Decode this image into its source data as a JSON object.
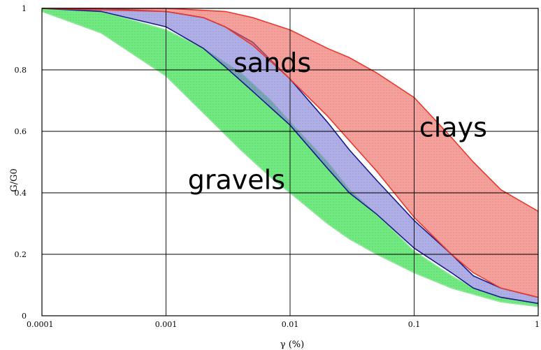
{
  "chart_data": {
    "type": "area",
    "title": "",
    "xlabel": "γ (%)",
    "ylabel": "G/G0",
    "xscale": "log",
    "xlim": [
      0.0001,
      1
    ],
    "ylim": [
      0,
      1
    ],
    "grid": true,
    "xticks": [
      0.0001,
      0.001,
      0.01,
      0.1,
      1
    ],
    "xtick_labels": [
      "0.0001",
      "0.001",
      "0.01",
      "0.1",
      "1"
    ],
    "yticks": [
      0,
      0.2,
      0.4,
      0.6,
      0.8,
      1
    ],
    "ytick_labels": [
      "0",
      "0.2",
      "0.4",
      "0.6",
      "0.8",
      "1"
    ],
    "bands": [
      {
        "name": "gravels",
        "fill": "#33e04a",
        "edge": "#8ee89a",
        "opacity": 0.7,
        "upper": [
          [
            0.0001,
            1.0
          ],
          [
            0.0003,
            0.99
          ],
          [
            0.001,
            0.93
          ],
          [
            0.002,
            0.87
          ],
          [
            0.004,
            0.79
          ],
          [
            0.007,
            0.7
          ],
          [
            0.01,
            0.63
          ],
          [
            0.02,
            0.5
          ],
          [
            0.03,
            0.41
          ],
          [
            0.05,
            0.33
          ],
          [
            0.1,
            0.21
          ],
          [
            0.2,
            0.13
          ],
          [
            0.3,
            0.09
          ],
          [
            0.5,
            0.06
          ],
          [
            1.0,
            0.04
          ]
        ],
        "lower": [
          [
            0.0001,
            0.99
          ],
          [
            0.0003,
            0.92
          ],
          [
            0.001,
            0.78
          ],
          [
            0.002,
            0.66
          ],
          [
            0.004,
            0.54
          ],
          [
            0.007,
            0.45
          ],
          [
            0.01,
            0.4
          ],
          [
            0.02,
            0.3
          ],
          [
            0.03,
            0.25
          ],
          [
            0.05,
            0.2
          ],
          [
            0.1,
            0.14
          ],
          [
            0.2,
            0.09
          ],
          [
            0.3,
            0.07
          ],
          [
            0.5,
            0.045
          ],
          [
            1.0,
            0.03
          ]
        ]
      },
      {
        "name": "sands",
        "fill": "#7a78d6",
        "edge": "#1a1a8c",
        "opacity": 0.6,
        "upper": [
          [
            0.0001,
            1.0
          ],
          [
            0.0003,
            1.0
          ],
          [
            0.001,
            0.99
          ],
          [
            0.002,
            0.97
          ],
          [
            0.003,
            0.94
          ],
          [
            0.005,
            0.89
          ],
          [
            0.01,
            0.77
          ],
          [
            0.02,
            0.63
          ],
          [
            0.03,
            0.54
          ],
          [
            0.05,
            0.44
          ],
          [
            0.1,
            0.31
          ],
          [
            0.2,
            0.2
          ],
          [
            0.3,
            0.13
          ],
          [
            0.5,
            0.09
          ],
          [
            1.0,
            0.06
          ]
        ],
        "lower": [
          [
            0.0001,
            1.0
          ],
          [
            0.0003,
            0.99
          ],
          [
            0.001,
            0.94
          ],
          [
            0.002,
            0.87
          ],
          [
            0.003,
            0.81
          ],
          [
            0.005,
            0.73
          ],
          [
            0.01,
            0.62
          ],
          [
            0.02,
            0.48
          ],
          [
            0.03,
            0.4
          ],
          [
            0.05,
            0.33
          ],
          [
            0.1,
            0.22
          ],
          [
            0.2,
            0.14
          ],
          [
            0.3,
            0.09
          ],
          [
            0.5,
            0.06
          ],
          [
            1.0,
            0.04
          ]
        ]
      },
      {
        "name": "clays",
        "fill": "#ee6158",
        "edge": "#e83a2e",
        "opacity": 0.6,
        "upper": [
          [
            0.0001,
            1.0
          ],
          [
            0.001,
            1.0
          ],
          [
            0.003,
            0.99
          ],
          [
            0.005,
            0.97
          ],
          [
            0.01,
            0.93
          ],
          [
            0.02,
            0.87
          ],
          [
            0.03,
            0.84
          ],
          [
            0.05,
            0.79
          ],
          [
            0.1,
            0.71
          ],
          [
            0.2,
            0.58
          ],
          [
            0.3,
            0.5
          ],
          [
            0.5,
            0.41
          ],
          [
            1.0,
            0.34
          ]
        ],
        "lower": [
          [
            0.0001,
            1.0
          ],
          [
            0.001,
            0.99
          ],
          [
            0.002,
            0.97
          ],
          [
            0.003,
            0.94
          ],
          [
            0.005,
            0.88
          ],
          [
            0.01,
            0.77
          ],
          [
            0.02,
            0.65
          ],
          [
            0.03,
            0.57
          ],
          [
            0.05,
            0.47
          ],
          [
            0.1,
            0.32
          ],
          [
            0.2,
            0.2
          ],
          [
            0.3,
            0.14
          ],
          [
            0.5,
            0.09
          ],
          [
            1.0,
            0.06
          ]
        ]
      }
    ],
    "annotations": [
      {
        "text": "sands",
        "x": 0.0035,
        "y": 0.82
      },
      {
        "text": "clays",
        "x": 0.11,
        "y": 0.61
      },
      {
        "text": "gravels",
        "x": 0.0015,
        "y": 0.44
      }
    ]
  }
}
